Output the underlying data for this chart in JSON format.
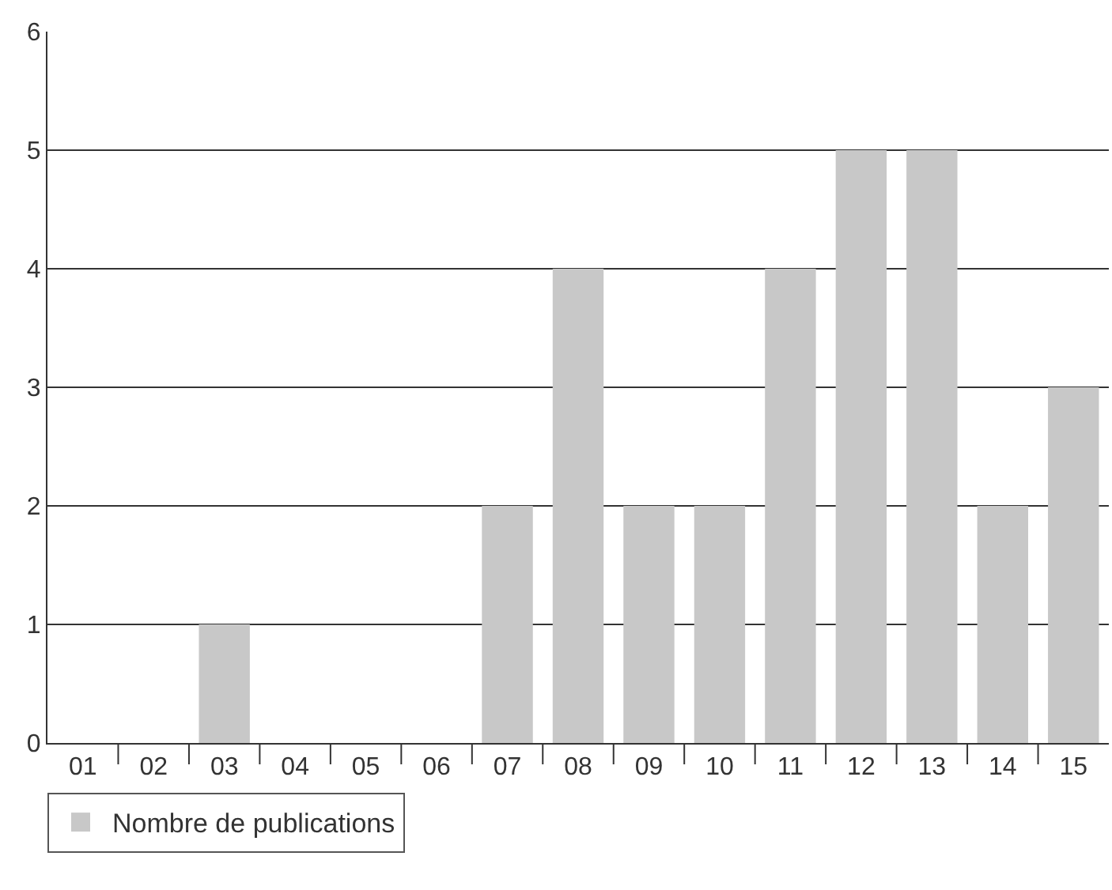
{
  "chart_data": {
    "type": "bar",
    "categories": [
      "01",
      "02",
      "03",
      "04",
      "05",
      "06",
      "07",
      "08",
      "09",
      "10",
      "11",
      "12",
      "13",
      "14",
      "15"
    ],
    "series": [
      {
        "name": "Nombre de publications",
        "color": "#c8c8c8",
        "values": [
          0,
          0,
          1,
          0,
          0,
          0,
          2,
          4,
          2,
          2,
          4,
          5,
          5,
          2,
          3
        ]
      }
    ],
    "ylim": [
      0,
      6
    ],
    "yticks": [
      0,
      1,
      2,
      3,
      4,
      5,
      6
    ],
    "grid": "y",
    "legend": "bottom left"
  }
}
